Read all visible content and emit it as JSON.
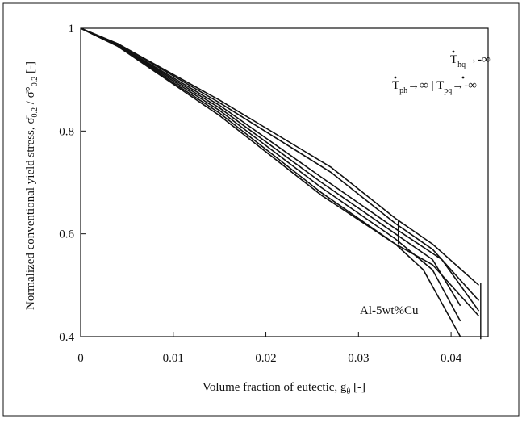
{
  "chart_data": {
    "type": "line",
    "xlabel": "Volume fraction of eutectic, g",
    "xlabel_sub": "θ",
    "xlabel_unit": " [-]",
    "ylabel": "Normalized conventional yield stress, σ̄",
    "ylabel_sub1": "0.2",
    "ylabel_mid": " / σ̄°",
    "ylabel_sub2": "0.2",
    "ylabel_unit": " [-]",
    "xlim": [
      0,
      0.044
    ],
    "ylim": [
      0.4,
      1.0
    ],
    "x_ticks": [
      0,
      0.01,
      0.02,
      0.03,
      0.04
    ],
    "x_tick_labels": [
      "0",
      "0.01",
      "0.02",
      "0.03",
      "0.04"
    ],
    "y_ticks": [
      0.4,
      0.6,
      0.8,
      1.0
    ],
    "y_tick_labels": [
      "0.4",
      "0.6",
      "0.8",
      "1"
    ],
    "annotations": {
      "alloy": "Al-5wt%Cu",
      "hq_T": "T",
      "hq_sub": "hq",
      "hq_limit": "→-∞",
      "ph_T": "T",
      "ph_sub": "ph",
      "ph_limit": "→∞ | ",
      "pq_T": "T",
      "pq_sub": "pq",
      "pq_limit": "→-∞"
    },
    "series": [
      {
        "x": [
          0,
          0.004,
          0.015,
          0.027,
          0.034,
          0.038,
          0.043
        ],
        "y": [
          1.0,
          0.97,
          0.86,
          0.73,
          0.63,
          0.58,
          0.5
        ]
      },
      {
        "x": [
          0,
          0.004,
          0.015,
          0.027,
          0.034,
          0.038,
          0.043
        ],
        "y": [
          1.0,
          0.97,
          0.855,
          0.72,
          0.62,
          0.57,
          0.47
        ]
      },
      {
        "x": [
          0,
          0.004,
          0.015,
          0.026,
          0.034,
          0.039,
          0.043
        ],
        "y": [
          1.0,
          0.968,
          0.85,
          0.71,
          0.61,
          0.55,
          0.45
        ]
      },
      {
        "x": [
          0,
          0.004,
          0.015,
          0.026,
          0.034,
          0.038,
          0.041
        ],
        "y": [
          1.0,
          0.967,
          0.845,
          0.7,
          0.6,
          0.55,
          0.46
        ]
      },
      {
        "x": [
          0,
          0.004,
          0.015,
          0.026,
          0.034,
          0.038,
          0.041
        ],
        "y": [
          1.0,
          0.966,
          0.84,
          0.69,
          0.59,
          0.53,
          0.43
        ]
      },
      {
        "x": [
          0,
          0.004,
          0.015,
          0.026,
          0.034,
          0.037,
          0.041
        ],
        "y": [
          1.0,
          0.965,
          0.835,
          0.68,
          0.58,
          0.53,
          0.4
        ]
      },
      {
        "x": [
          0,
          0.004,
          0.015,
          0.026,
          0.034,
          0.038,
          0.043
        ],
        "y": [
          1.0,
          0.965,
          0.83,
          0.675,
          0.58,
          0.54,
          0.44
        ]
      }
    ],
    "markers": [
      {
        "x": 0.0343,
        "y0": 0.58,
        "y1": 0.625
      },
      {
        "x": 0.0432,
        "y0": 0.395,
        "y1": 0.505
      }
    ],
    "grid": false
  }
}
